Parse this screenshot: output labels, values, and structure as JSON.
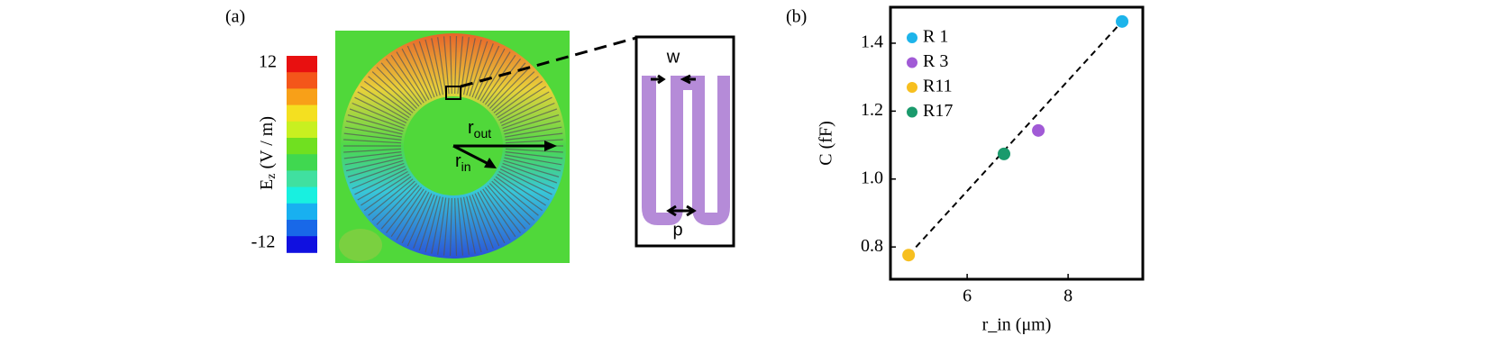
{
  "panel_a": {
    "label": "(a)",
    "colorbar": {
      "title": "E",
      "title_sub": "z",
      "title_unit": " (V / m)",
      "max_label": "12",
      "min_label": "-12"
    },
    "r_out": {
      "main": "r",
      "sub": "out"
    },
    "r_in": {
      "main": "r",
      "sub": "in"
    },
    "inset": {
      "w": "w",
      "p": "p"
    }
  },
  "chart_data": {
    "type": "scatter",
    "label": "(b)",
    "xlabel": "r_in (μm)",
    "ylabel": "C (fF)",
    "xlim": [
      4.48,
      9.48
    ],
    "ylim": [
      0.705,
      1.506
    ],
    "xticks": [
      6,
      8
    ],
    "yticks": [
      0.8,
      {
        "value": 1.0,
        "label": "1.0"
      },
      1.2,
      1.4
    ],
    "legend": "upper left",
    "series": [
      {
        "name": "R 1",
        "color": "#1db4ea",
        "x": [
          9.07
        ],
        "values": [
          1.464
        ]
      },
      {
        "name": "R 3",
        "color": "#a15ad6",
        "x": [
          7.41
        ],
        "values": [
          1.143
        ]
      },
      {
        "name": "R11",
        "color": "#f7bf1f",
        "x": [
          4.84
        ],
        "values": [
          0.776
        ]
      },
      {
        "name": "R17",
        "color": "#1a9a6c",
        "x": [
          6.73
        ],
        "values": [
          1.074
        ]
      }
    ],
    "fit": {
      "x": [
        4.84,
        9.07
      ],
      "y": [
        0.776,
        1.464
      ]
    }
  }
}
